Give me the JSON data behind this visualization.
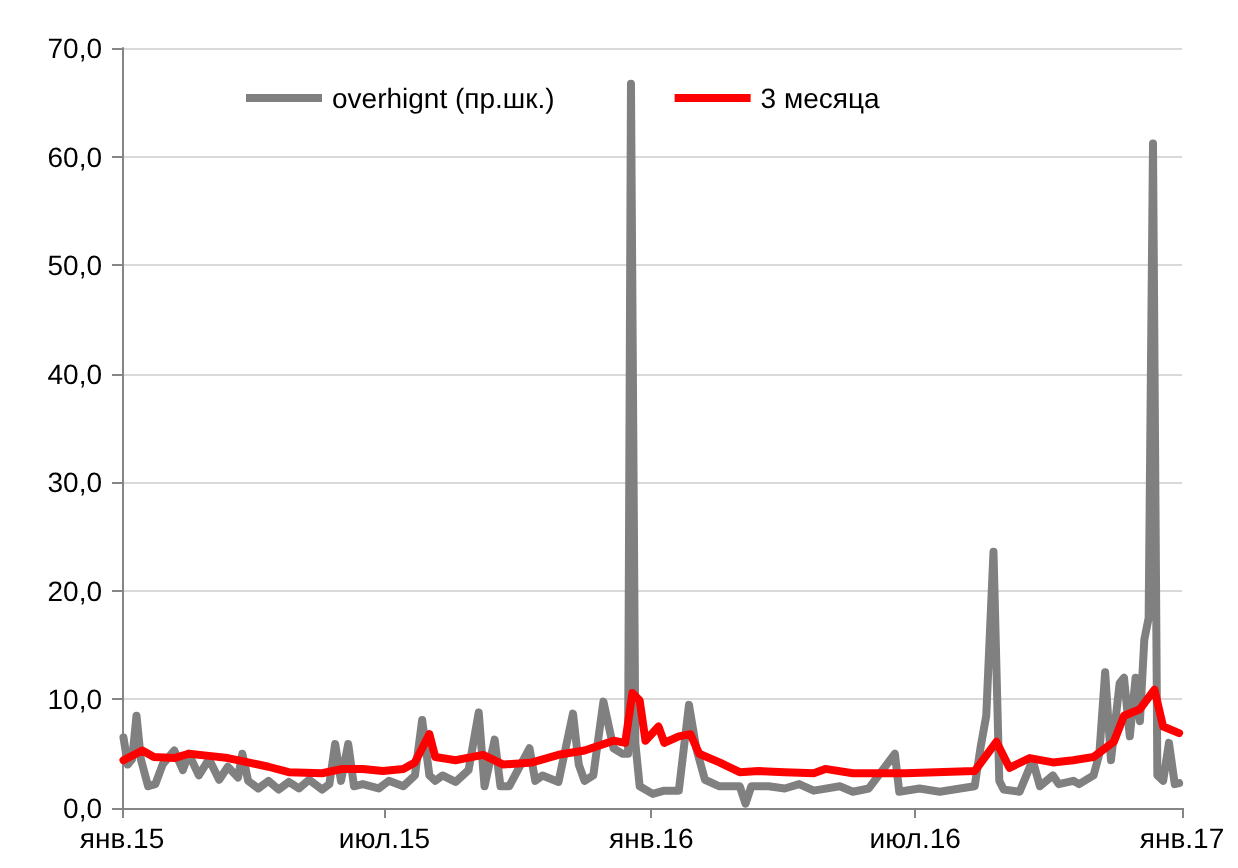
{
  "chart_data": {
    "type": "line",
    "xlim": [
      "2015-01-01",
      "2017-01-01"
    ],
    "xticks": [
      {
        "value": "2015-01-01",
        "label": "янв.15"
      },
      {
        "value": "2015-07-01",
        "label": "июл.15"
      },
      {
        "value": "2016-01-01",
        "label": "янв.16"
      },
      {
        "value": "2016-07-01",
        "label": "июл.16"
      },
      {
        "value": "2017-01-01",
        "label": "янв.17"
      }
    ],
    "ylim": [
      0,
      70
    ],
    "yticks": [
      {
        "value": 0,
        "label": "0,0"
      },
      {
        "value": 10,
        "label": "10,0"
      },
      {
        "value": 20,
        "label": "20,0"
      },
      {
        "value": 30,
        "label": "30,0"
      },
      {
        "value": 40,
        "label": "40,0"
      },
      {
        "value": 50,
        "label": "50,0"
      },
      {
        "value": 60,
        "label": "60,0"
      },
      {
        "value": 70,
        "label": "70,0"
      }
    ],
    "grid": "y",
    "legend": "top",
    "series": [
      {
        "name": "overhignt (пр.шк.)",
        "color": "#808080",
        "x": [
          "2015-01-02",
          "2015-01-05",
          "2015-01-08",
          "2015-01-11",
          "2015-01-14",
          "2015-01-19",
          "2015-01-24",
          "2015-01-29",
          "2015-02-06",
          "2015-02-12",
          "2015-02-16",
          "2015-02-23",
          "2015-03-02",
          "2015-03-09",
          "2015-03-15",
          "2015-03-22",
          "2015-03-25",
          "2015-03-29",
          "2015-04-05",
          "2015-04-12",
          "2015-04-19",
          "2015-04-26",
          "2015-05-03",
          "2015-05-10",
          "2015-05-19",
          "2015-05-24",
          "2015-05-28",
          "2015-06-01",
          "2015-06-06",
          "2015-06-10",
          "2015-06-16",
          "2015-06-27",
          "2015-07-04",
          "2015-07-14",
          "2015-07-22",
          "2015-07-27",
          "2015-08-01",
          "2015-08-05",
          "2015-08-10",
          "2015-08-19",
          "2015-08-28",
          "2015-09-04",
          "2015-09-08",
          "2015-09-15",
          "2015-09-19",
          "2015-09-25",
          "2015-10-09",
          "2015-10-13",
          "2015-10-18",
          "2015-10-29",
          "2015-11-08",
          "2015-11-12",
          "2015-11-16",
          "2015-11-22",
          "2015-11-29",
          "2015-12-06",
          "2015-12-12",
          "2015-12-16",
          "2015-12-18",
          "2015-12-21",
          "2015-12-24",
          "2016-01-02",
          "2016-01-10",
          "2016-01-20",
          "2016-01-27",
          "2016-02-01",
          "2016-02-07",
          "2016-02-17",
          "2016-03-02",
          "2016-03-06",
          "2016-03-10",
          "2016-03-22",
          "2016-04-02",
          "2016-04-12",
          "2016-04-22",
          "2016-05-10",
          "2016-05-19",
          "2016-05-30",
          "2016-06-17",
          "2016-06-20",
          "2016-07-04",
          "2016-07-18",
          "2016-08-01",
          "2016-08-11",
          "2016-08-15",
          "2016-08-19",
          "2016-08-24",
          "2016-08-28",
          "2016-08-31",
          "2016-09-11",
          "2016-09-20",
          "2016-09-25",
          "2016-10-04",
          "2016-10-08",
          "2016-10-18",
          "2016-10-22",
          "2016-11-01",
          "2016-11-05",
          "2016-11-09",
          "2016-11-13",
          "2016-11-19",
          "2016-11-22",
          "2016-11-26",
          "2016-11-30",
          "2016-12-03",
          "2016-12-06",
          "2016-12-09",
          "2016-12-12",
          "2016-12-15",
          "2016-12-19",
          "2016-12-23",
          "2016-12-27",
          "2016-12-30"
        ],
        "values": [
          6.5,
          4.0,
          4.5,
          8.5,
          4.5,
          2.0,
          2.2,
          4.0,
          5.3,
          3.5,
          5.0,
          3.0,
          4.5,
          2.6,
          3.8,
          2.8,
          5.0,
          2.5,
          1.8,
          2.5,
          1.7,
          2.4,
          1.8,
          2.6,
          1.7,
          2.2,
          5.9,
          2.5,
          5.9,
          2.0,
          2.2,
          1.8,
          2.5,
          2.0,
          3.0,
          8.1,
          3.0,
          2.5,
          3.0,
          2.4,
          3.5,
          8.8,
          2.0,
          6.3,
          2.0,
          2.0,
          5.5,
          2.5,
          3.0,
          2.4,
          8.7,
          4.0,
          2.5,
          3.0,
          9.8,
          5.5,
          5.0,
          5.0,
          66.7,
          6.0,
          2.0,
          1.3,
          1.6,
          1.6,
          9.5,
          5.5,
          2.6,
          2.0,
          2.0,
          0.4,
          2.0,
          2.0,
          1.8,
          2.2,
          1.6,
          2.0,
          1.5,
          1.8,
          5.0,
          1.5,
          1.8,
          1.5,
          1.8,
          2.0,
          5.5,
          8.5,
          23.6,
          2.5,
          1.7,
          1.5,
          4.4,
          2.0,
          3.0,
          2.2,
          2.5,
          2.2,
          3.0,
          5.0,
          12.5,
          4.4,
          11.5,
          12.0,
          6.6,
          12.0,
          8.0,
          15.5,
          17.5,
          61.2,
          3.0,
          2.5,
          6.0,
          2.2,
          2.3
        ]
      },
      {
        "name": "3 месяца",
        "color": "#ff0000",
        "x": [
          "2015-01-02",
          "2015-01-15",
          "2015-01-23",
          "2015-02-06",
          "2015-02-16",
          "2015-03-02",
          "2015-03-15",
          "2015-03-29",
          "2015-04-12",
          "2015-04-26",
          "2015-05-19",
          "2015-06-02",
          "2015-06-16",
          "2015-06-30",
          "2015-07-14",
          "2015-07-22",
          "2015-08-01",
          "2015-08-05",
          "2015-08-19",
          "2015-09-07",
          "2015-09-21",
          "2015-10-11",
          "2015-10-29",
          "2015-11-16",
          "2015-12-06",
          "2015-12-14",
          "2015-12-19",
          "2015-12-24",
          "2015-12-28",
          "2016-01-06",
          "2016-01-10",
          "2016-01-20",
          "2016-01-28",
          "2016-02-03",
          "2016-02-17",
          "2016-03-02",
          "2016-03-15",
          "2016-04-02",
          "2016-04-22",
          "2016-04-30",
          "2016-05-19",
          "2016-06-06",
          "2016-06-24",
          "2016-08-11",
          "2016-08-26",
          "2016-09-04",
          "2016-09-18",
          "2016-10-04",
          "2016-10-18",
          "2016-11-01",
          "2016-11-15",
          "2016-11-22",
          "2016-12-03",
          "2016-12-13",
          "2016-12-19",
          "2016-12-30"
        ],
        "values": [
          4.4,
          5.3,
          4.7,
          4.6,
          5.0,
          4.8,
          4.6,
          4.2,
          3.8,
          3.3,
          3.2,
          3.6,
          3.6,
          3.4,
          3.6,
          4.2,
          6.8,
          4.7,
          4.4,
          4.9,
          4.0,
          4.2,
          4.9,
          5.3,
          6.2,
          6.0,
          10.6,
          9.9,
          6.2,
          7.5,
          6.0,
          6.6,
          6.8,
          5.0,
          4.2,
          3.3,
          3.4,
          3.3,
          3.2,
          3.6,
          3.2,
          3.2,
          3.2,
          3.4,
          6.1,
          3.7,
          4.6,
          4.2,
          4.4,
          4.7,
          6.1,
          8.5,
          9.1,
          10.9,
          7.5,
          6.9
        ]
      }
    ]
  }
}
